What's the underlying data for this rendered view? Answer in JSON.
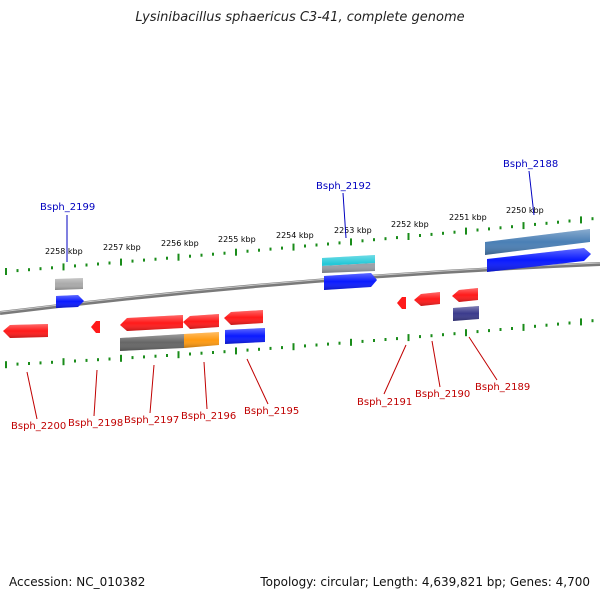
{
  "title": "Lysinibacillus sphaericus C3-41, complete genome",
  "footer": {
    "accession": "Accession: NC_010382",
    "topology": "Topology: circular; Length: 4,639,821 bp; Genes: 4,700"
  },
  "colors": {
    "backbone": "#888888",
    "tick": "#1a8c1a",
    "top_label": "#0000c0",
    "bottom_label": "#c00000",
    "red": "#ff1a1a",
    "blue": "#0a1aff",
    "gray": "#aaaaaa",
    "dark_gray": "#666666",
    "orange": "#ff9a10",
    "steel_blue": "#4a7fb5",
    "cyan": "#22c8d8",
    "navy": "#3a3a8c"
  },
  "scale_labels": [
    "2258 kbp",
    "2257 kbp",
    "2256 kbp",
    "2255 kbp",
    "2254 kbp",
    "2253 kbp",
    "2252 kbp",
    "2251 kbp",
    "2250 kbp"
  ],
  "top_labels": [
    "Bsph_2199",
    "Bsph_2192",
    "Bsph_2188"
  ],
  "bottom_labels": [
    "Bsph_2200",
    "Bsph_2198",
    "Bsph_2197",
    "Bsph_2196",
    "Bsph_2195",
    "Bsph_2191",
    "Bsph_2190",
    "Bsph_2189"
  ]
}
